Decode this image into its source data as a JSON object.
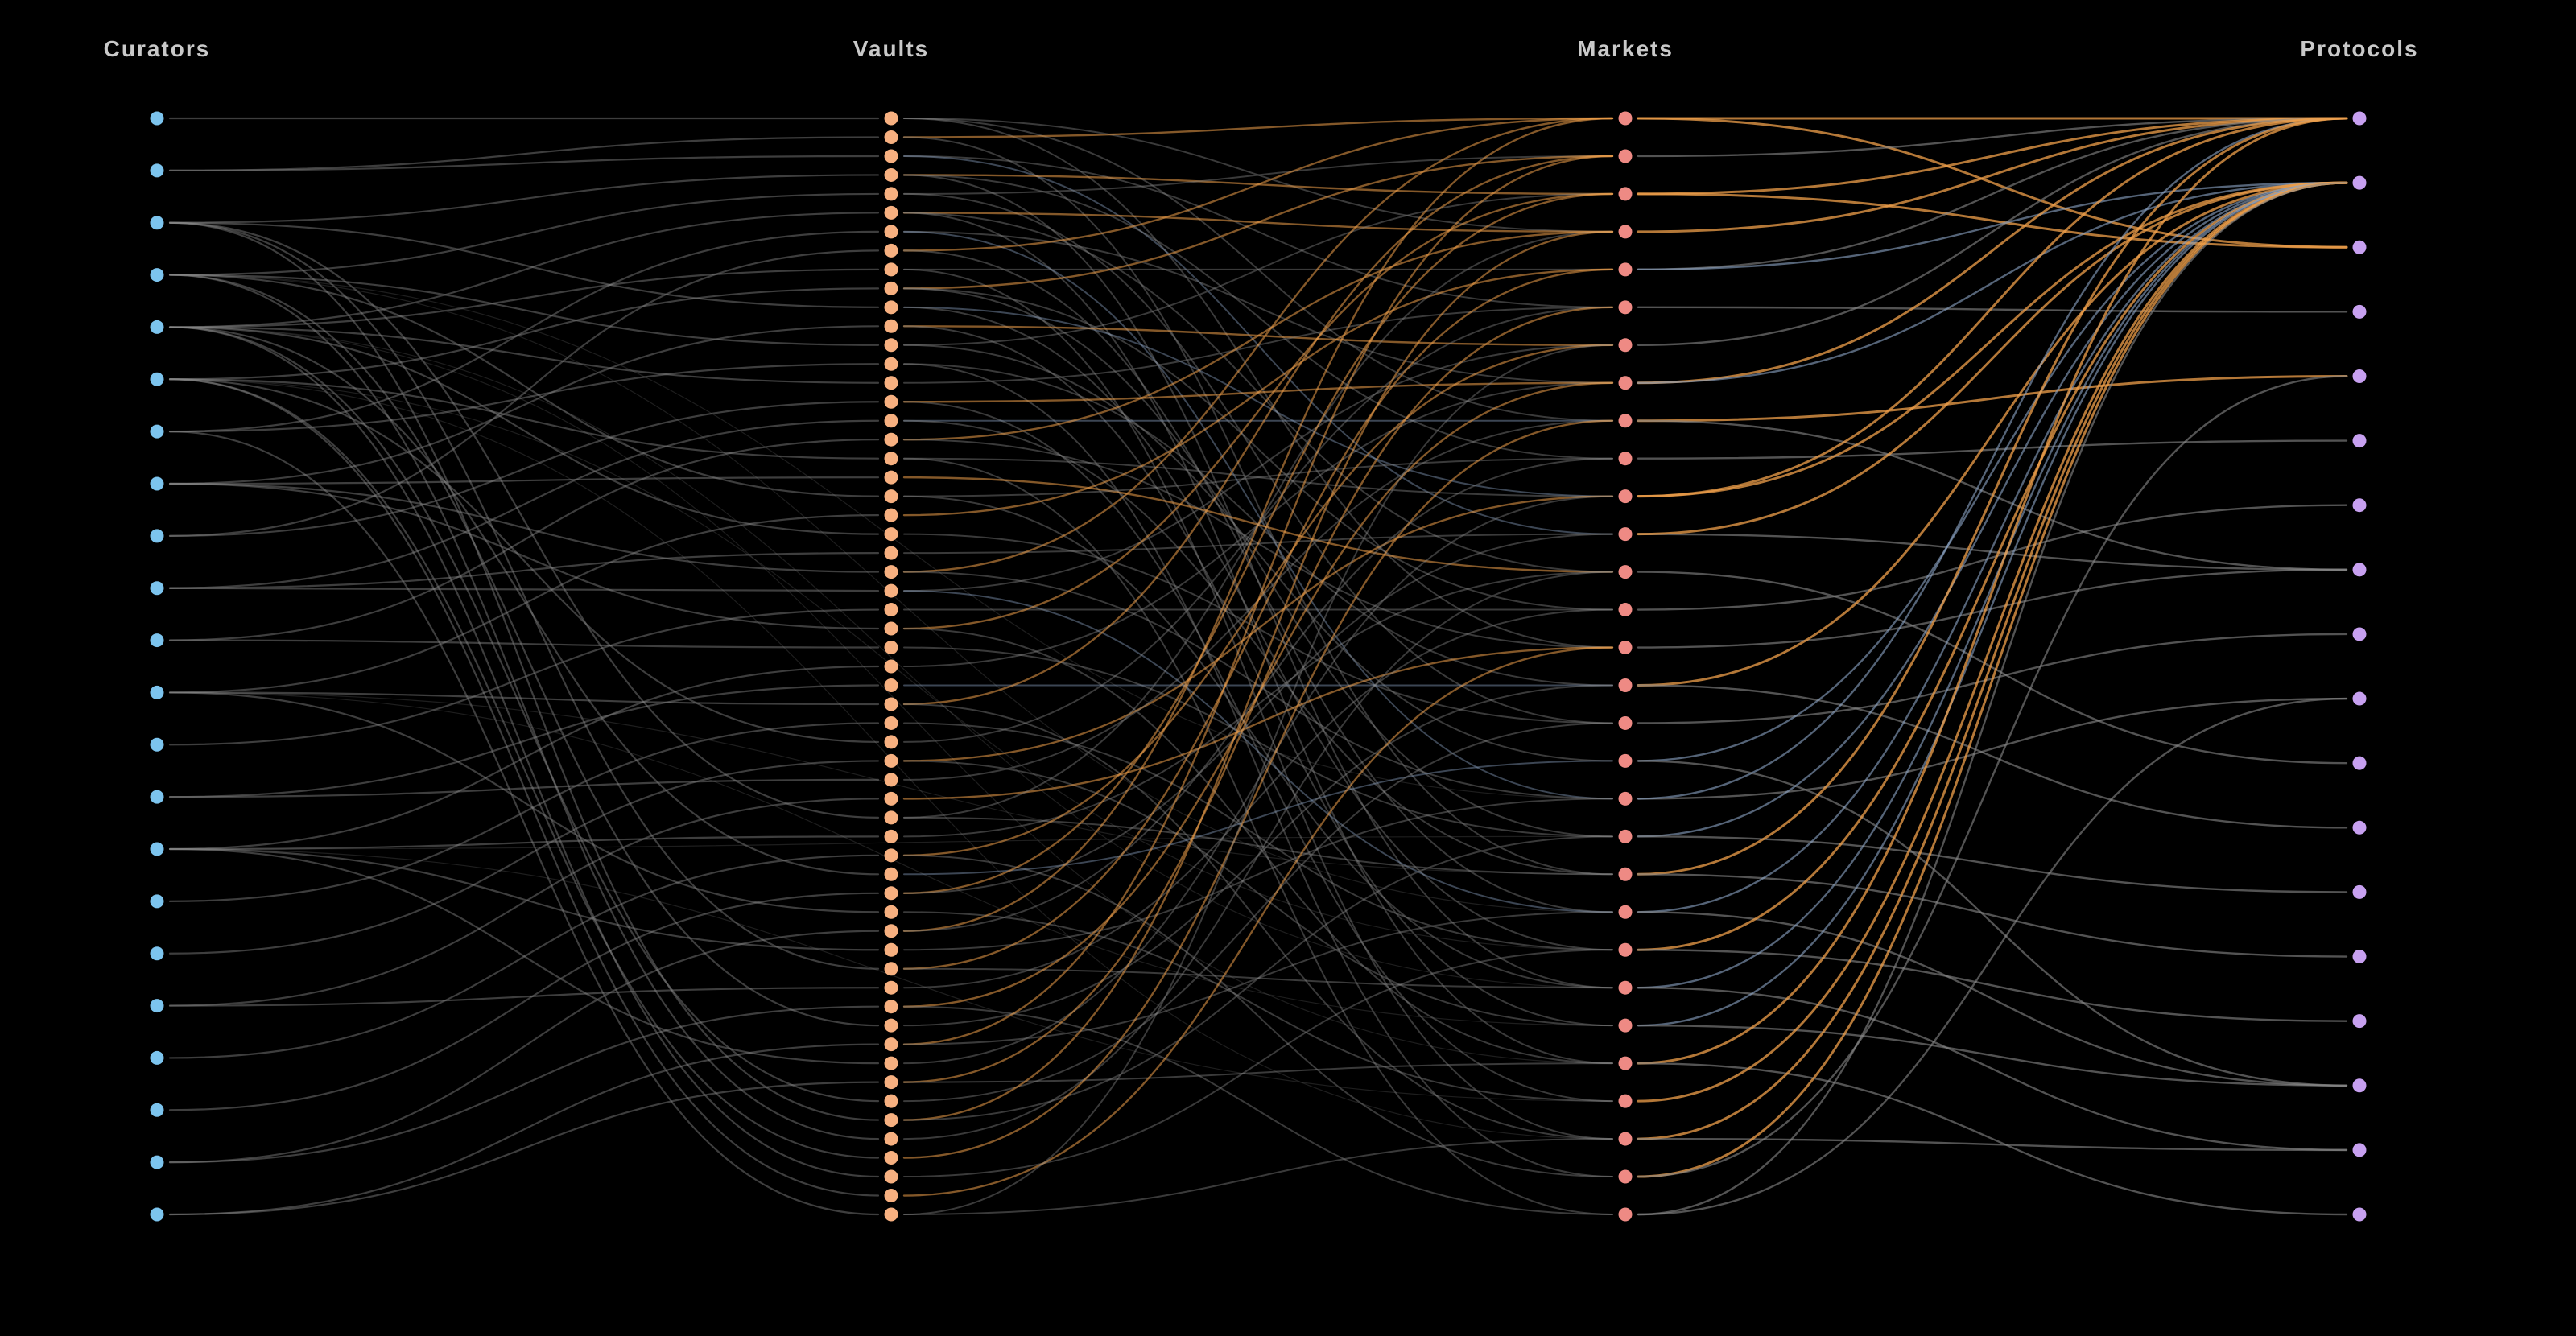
{
  "columns": [
    {
      "key": "curators",
      "title": "Curators",
      "node_count": 22,
      "color": "#7cc4ee"
    },
    {
      "key": "vaults",
      "title": "Vaults",
      "node_count": 59,
      "color": "#f7b080"
    },
    {
      "key": "markets",
      "title": "Markets",
      "node_count": 30,
      "color": "#ee8a84"
    },
    {
      "key": "protocols",
      "title": "Protocols",
      "node_count": 18,
      "color": "#c7a0f0"
    }
  ],
  "colors": {
    "background": "#000000",
    "link_grey": "#8a8a8a",
    "link_blue_grey": "#8ea6c8",
    "link_orange": "#f0a04b",
    "title_text": "#c9c9c9"
  },
  "links": {
    "curators_to_vaults": [
      [
        0,
        0
      ],
      [
        1,
        1
      ],
      [
        1,
        2
      ],
      [
        2,
        3
      ],
      [
        2,
        10
      ],
      [
        2,
        37
      ],
      [
        2,
        45
      ],
      [
        3,
        4
      ],
      [
        3,
        12
      ],
      [
        3,
        20
      ],
      [
        3,
        48
      ],
      [
        4,
        5
      ],
      [
        4,
        8
      ],
      [
        4,
        14
      ],
      [
        4,
        22
      ],
      [
        4,
        40
      ],
      [
        4,
        52
      ],
      [
        5,
        9
      ],
      [
        5,
        18
      ],
      [
        5,
        33
      ],
      [
        5,
        55
      ],
      [
        6,
        13
      ],
      [
        6,
        6
      ],
      [
        7,
        19
      ],
      [
        7,
        27
      ],
      [
        7,
        24
      ],
      [
        8,
        15
      ],
      [
        9,
        16
      ],
      [
        9,
        25
      ],
      [
        10,
        17
      ],
      [
        10,
        28
      ],
      [
        11,
        21
      ],
      [
        11,
        31
      ],
      [
        11,
        42
      ],
      [
        12,
        26
      ],
      [
        13,
        30
      ],
      [
        13,
        35
      ],
      [
        14,
        29
      ],
      [
        14,
        38
      ],
      [
        14,
        44
      ],
      [
        14,
        50
      ],
      [
        15,
        32
      ],
      [
        16,
        34
      ],
      [
        17,
        36
      ],
      [
        17,
        46
      ],
      [
        18,
        39
      ],
      [
        19,
        41
      ],
      [
        20,
        43
      ],
      [
        20,
        47
      ],
      [
        21,
        49
      ],
      [
        21,
        51
      ],
      [
        2,
        53
      ],
      [
        3,
        54
      ],
      [
        4,
        56
      ],
      [
        5,
        57
      ],
      [
        6,
        58
      ],
      [
        7,
        11
      ],
      [
        8,
        7
      ],
      [
        9,
        23
      ]
    ],
    "vaults_to_markets": [
      [
        0,
        3,
        "g"
      ],
      [
        0,
        8,
        "g"
      ],
      [
        0,
        14,
        "g"
      ],
      [
        1,
        0,
        "o"
      ],
      [
        1,
        20,
        "g"
      ],
      [
        2,
        5,
        "g"
      ],
      [
        2,
        11,
        "b"
      ],
      [
        3,
        2,
        "o"
      ],
      [
        3,
        9,
        "g"
      ],
      [
        3,
        23,
        "g"
      ],
      [
        4,
        1,
        "g"
      ],
      [
        4,
        16,
        "g"
      ],
      [
        5,
        3,
        "o"
      ],
      [
        5,
        12,
        "g"
      ],
      [
        5,
        25,
        "g"
      ],
      [
        6,
        7,
        "g"
      ],
      [
        6,
        18,
        "b"
      ],
      [
        7,
        0,
        "o"
      ],
      [
        7,
        21,
        "g"
      ],
      [
        8,
        4,
        "g"
      ],
      [
        8,
        27,
        "g"
      ],
      [
        9,
        1,
        "o"
      ],
      [
        9,
        13,
        "g"
      ],
      [
        9,
        19,
        "g"
      ],
      [
        10,
        10,
        "b"
      ],
      [
        10,
        22,
        "g"
      ],
      [
        11,
        6,
        "o"
      ],
      [
        11,
        24,
        "g"
      ],
      [
        12,
        2,
        "g"
      ],
      [
        12,
        17,
        "g"
      ],
      [
        13,
        15,
        "g"
      ],
      [
        13,
        28,
        "g"
      ],
      [
        14,
        5,
        "g"
      ],
      [
        15,
        7,
        "o"
      ],
      [
        15,
        26,
        "g"
      ],
      [
        16,
        8,
        "b"
      ],
      [
        16,
        20,
        "g"
      ],
      [
        17,
        3,
        "o"
      ],
      [
        17,
        14,
        "g"
      ],
      [
        18,
        10,
        "g"
      ],
      [
        18,
        29,
        "g"
      ],
      [
        19,
        12,
        "o"
      ],
      [
        20,
        9,
        "g"
      ],
      [
        20,
        23,
        "g"
      ],
      [
        21,
        4,
        "o"
      ],
      [
        22,
        16,
        "g"
      ],
      [
        23,
        11,
        "g"
      ],
      [
        24,
        0,
        "o"
      ],
      [
        24,
        18,
        "g"
      ],
      [
        25,
        6,
        "g"
      ],
      [
        25,
        21,
        "b"
      ],
      [
        26,
        13,
        "g"
      ],
      [
        27,
        2,
        "o"
      ],
      [
        27,
        25,
        "g"
      ],
      [
        28,
        19,
        "g"
      ],
      [
        29,
        7,
        "g"
      ],
      [
        30,
        15,
        "b"
      ],
      [
        31,
        1,
        "o"
      ],
      [
        31,
        27,
        "g"
      ],
      [
        32,
        22,
        "g"
      ],
      [
        33,
        5,
        "g"
      ],
      [
        34,
        10,
        "o"
      ],
      [
        34,
        24,
        "g"
      ],
      [
        35,
        8,
        "g"
      ],
      [
        36,
        14,
        "o"
      ],
      [
        37,
        3,
        "g"
      ],
      [
        37,
        20,
        "g"
      ],
      [
        38,
        12,
        "g"
      ],
      [
        39,
        6,
        "o"
      ],
      [
        39,
        28,
        "g"
      ],
      [
        40,
        17,
        "b"
      ],
      [
        41,
        2,
        "o"
      ],
      [
        41,
        11,
        "g"
      ],
      [
        42,
        26,
        "g"
      ],
      [
        43,
        0,
        "o"
      ],
      [
        43,
        9,
        "g"
      ],
      [
        44,
        18,
        "g"
      ],
      [
        45,
        4,
        "o"
      ],
      [
        45,
        23,
        "g"
      ],
      [
        46,
        13,
        "g"
      ],
      [
        47,
        7,
        "o"
      ],
      [
        47,
        29,
        "g"
      ],
      [
        48,
        15,
        "g"
      ],
      [
        49,
        1,
        "o"
      ],
      [
        49,
        21,
        "g"
      ],
      [
        50,
        10,
        "g"
      ],
      [
        51,
        5,
        "o"
      ],
      [
        51,
        25,
        "g"
      ],
      [
        52,
        16,
        "g"
      ],
      [
        53,
        3,
        "o"
      ],
      [
        53,
        19,
        "g"
      ],
      [
        54,
        12,
        "g"
      ],
      [
        55,
        8,
        "o"
      ],
      [
        56,
        22,
        "g"
      ],
      [
        57,
        14,
        "o"
      ],
      [
        58,
        27,
        "g"
      ],
      [
        58,
        6,
        "g"
      ]
    ],
    "markets_to_protocols": [
      [
        0,
        0,
        "o"
      ],
      [
        0,
        2,
        "o"
      ],
      [
        1,
        0,
        "g"
      ],
      [
        2,
        0,
        "o"
      ],
      [
        2,
        2,
        "o"
      ],
      [
        3,
        0,
        "o"
      ],
      [
        4,
        0,
        "g"
      ],
      [
        4,
        1,
        "b"
      ],
      [
        5,
        3,
        "g"
      ],
      [
        6,
        0,
        "g"
      ],
      [
        7,
        0,
        "o"
      ],
      [
        7,
        1,
        "b"
      ],
      [
        8,
        4,
        "o"
      ],
      [
        8,
        7,
        "g"
      ],
      [
        9,
        5,
        "g"
      ],
      [
        10,
        0,
        "o"
      ],
      [
        10,
        1,
        "o"
      ],
      [
        11,
        7,
        "g"
      ],
      [
        11,
        1,
        "o"
      ],
      [
        12,
        10,
        "g"
      ],
      [
        13,
        6,
        "g"
      ],
      [
        14,
        7,
        "g"
      ],
      [
        15,
        1,
        "o"
      ],
      [
        15,
        11,
        "g"
      ],
      [
        16,
        8,
        "g"
      ],
      [
        17,
        1,
        "b"
      ],
      [
        17,
        15,
        "g"
      ],
      [
        18,
        9,
        "g"
      ],
      [
        18,
        0,
        "b"
      ],
      [
        19,
        1,
        "b"
      ],
      [
        19,
        12,
        "g"
      ],
      [
        20,
        0,
        "o"
      ],
      [
        20,
        13,
        "g"
      ],
      [
        21,
        1,
        "b"
      ],
      [
        21,
        15,
        "g"
      ],
      [
        22,
        1,
        "o"
      ],
      [
        22,
        14,
        "g"
      ],
      [
        23,
        1,
        "b"
      ],
      [
        23,
        16,
        "g"
      ],
      [
        24,
        1,
        "b"
      ],
      [
        24,
        15,
        "g"
      ],
      [
        25,
        0,
        "o"
      ],
      [
        25,
        17,
        "g"
      ],
      [
        26,
        1,
        "o"
      ],
      [
        27,
        1,
        "o"
      ],
      [
        27,
        16,
        "g"
      ],
      [
        28,
        1,
        "o"
      ],
      [
        28,
        4,
        "g"
      ],
      [
        29,
        1,
        "g"
      ],
      [
        29,
        9,
        "g"
      ]
    ],
    "curators_to_markets_far": [
      [
        3,
        18
      ],
      [
        3,
        21
      ],
      [
        4,
        23
      ],
      [
        4,
        25
      ],
      [
        5,
        22
      ],
      [
        5,
        27
      ],
      [
        11,
        20
      ],
      [
        11,
        24
      ],
      [
        14,
        19
      ],
      [
        14,
        26
      ]
    ]
  }
}
